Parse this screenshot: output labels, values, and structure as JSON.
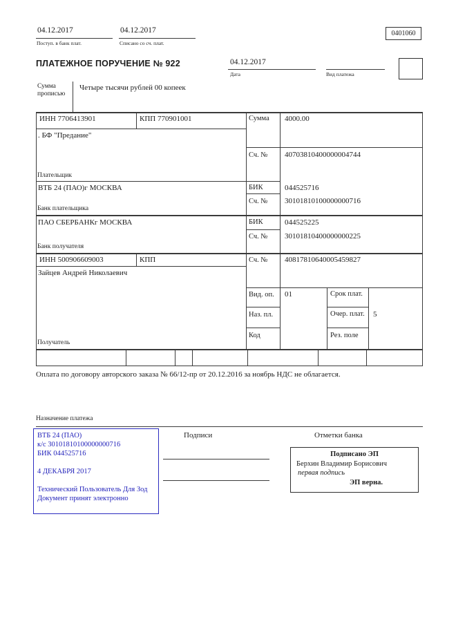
{
  "colors": {
    "stamp_blue": "#2323bb",
    "ink": "#1c1c1c",
    "line": "#3a3a3a"
  },
  "header": {
    "received_date": "04.12.2017",
    "received_label": "Поступ. в банк плат.",
    "debited_date": "04.12.2017",
    "debited_label": "Списано со сч. плат.",
    "form_code": "0401060",
    "title": "ПЛАТЕЖНОЕ ПОРУЧЕНИЕ № 922",
    "date_value": "04.12.2017",
    "date_label": "Дата",
    "payment_kind_label": "Вид платежа"
  },
  "amount_words": {
    "label": "Сумма прописью",
    "value": "Четыре тысячи рублей 00 копеек"
  },
  "payer": {
    "inn": "ИНН 7706413901",
    "kpp": "КПП 770901001",
    "sum_label": "Сумма",
    "sum_value": "4000.00",
    "name": ". БФ \"Предание\"",
    "account_label": "Сч. №",
    "account": "40703810400000004744",
    "label": "Плательщик"
  },
  "payer_bank": {
    "name": "ВТБ 24 (ПАО)г МОСКВА",
    "bik_label": "БИК",
    "bik": "044525716",
    "account_label": "Сч. №",
    "account": "30101810100000000716",
    "label": "Банк плательщика"
  },
  "payee_bank": {
    "name": "ПАО СБЕРБАНКг МОСКВА",
    "bik_label": "БИК",
    "bik": "044525225",
    "account_label": "Сч. №",
    "account": "30101810400000000225",
    "label": "Банк получателя"
  },
  "payee": {
    "inn": "ИНН 500906609003",
    "kpp_label": "КПП",
    "account_label": "Сч. №",
    "account": "40817810640005459827",
    "name": "Зайцев Андрей Николаевич",
    "label": "Получатель",
    "op_type_label": "Вид. оп.",
    "op_type_value": "01",
    "pay_term_label": "Срок плат.",
    "purpose_code_label": "Наз. пл.",
    "pay_order_label": "Очер. плат.",
    "pay_order_value": "5",
    "code_label": "Код",
    "reserve_label": "Рез. поле"
  },
  "purpose": {
    "text": "Оплата по договору авторского заказа № 66/12-пр от 20.12.2016 за ноябрь НДС не облагается.",
    "label": "Назначение платежа"
  },
  "footer": {
    "signatures_label": "Подписи",
    "bank_marks_label": "Отметки банка",
    "stamp": {
      "bank_name": "ВТБ 24 (ПАО)",
      "corr_account": "к/с 30101810100000000716",
      "bik": "БИК 044525716",
      "date": "4 ДЕКАБРЯ 2017",
      "user": "Технический Пользователь Для Зод",
      "note": "Документ принят электронно"
    },
    "esign": {
      "title": "Подписано ЭП",
      "name": "Берхин Владимир Борисович",
      "note": "первая подпись",
      "verified": "ЭП верна."
    }
  }
}
